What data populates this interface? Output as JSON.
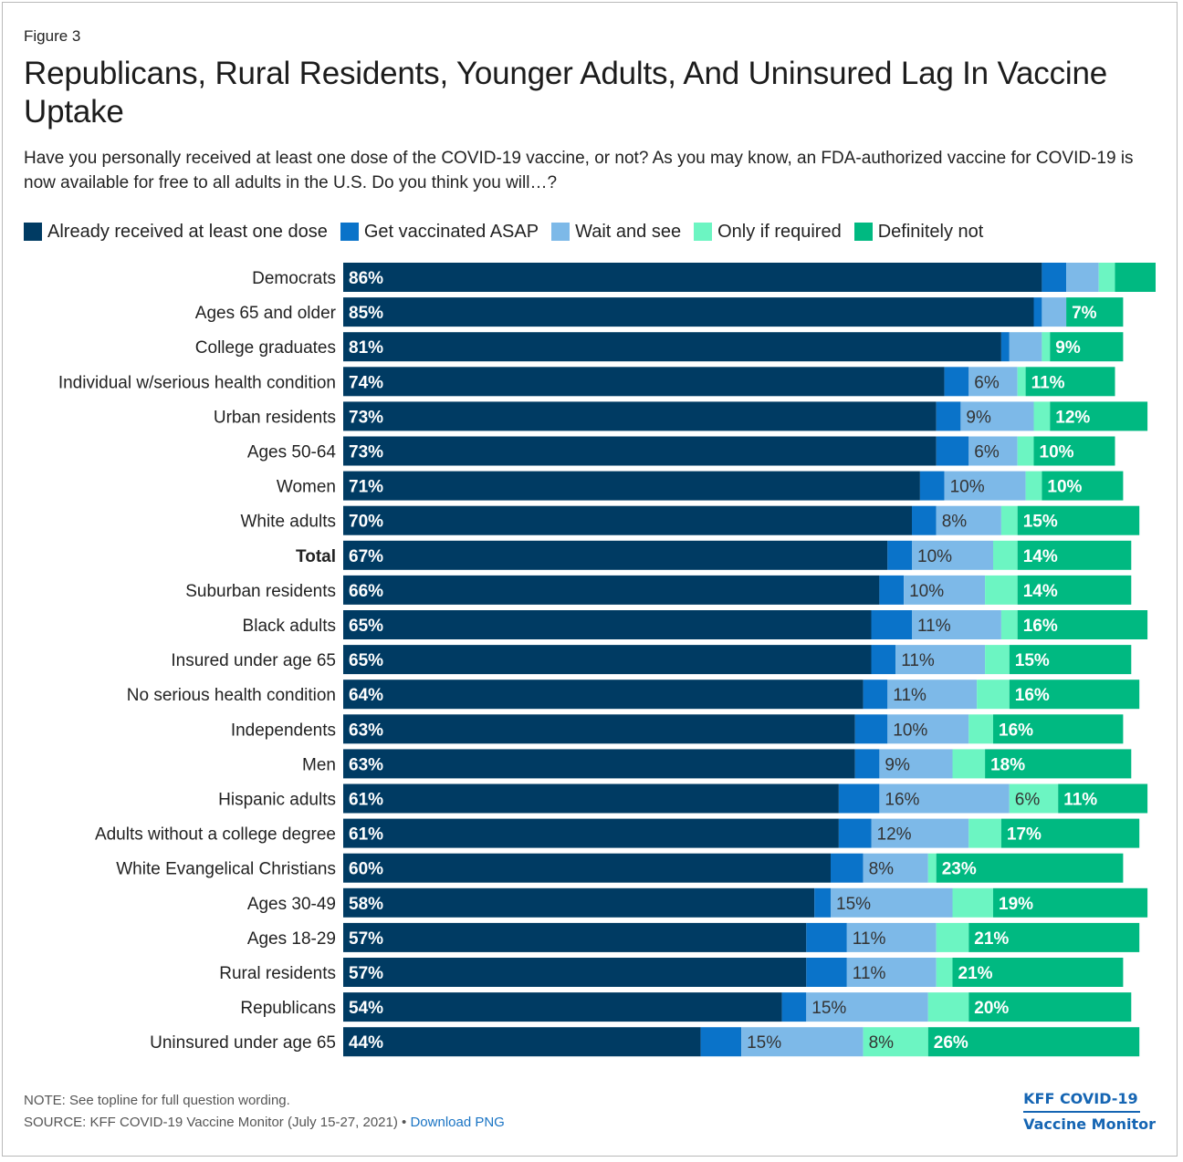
{
  "figure_label": "Figure 3",
  "title": "Republicans, Rural Residents, Younger Adults, And Uninsured Lag In Vaccine Uptake",
  "subtitle": "Have you personally received at least one dose of the COVID-19 vaccine, or not? As you may know, an FDA-authorized vaccine for COVID-19 is now available for free to all adults in the U.S. Do you think you will…?",
  "note": "NOTE: See topline for full question wording.",
  "source": "SOURCE: KFF COVID-19 Vaccine Monitor (July 15-27, 2021)",
  "source_separator": " • ",
  "download_link": "Download PNG",
  "brand": {
    "line1": "KFF COVID-19",
    "line2": "Vaccine Monitor"
  },
  "chart_data": {
    "type": "bar",
    "orientation": "horizontal",
    "stacked": true,
    "legend_position": "top",
    "grid": false,
    "xlim": [
      0,
      100
    ],
    "categories": [
      "Democrats",
      "Ages 65 and older",
      "College graduates",
      "Individual w/serious health condition",
      "Urban residents",
      "Ages 50-64",
      "Women",
      "White adults",
      "Total",
      "Suburban residents",
      "Black adults",
      "Insured under age 65",
      "No serious health condition",
      "Independents",
      "Men",
      "Hispanic adults",
      "Adults without a college degree",
      "White Evangelical Christians",
      "Ages 30-49",
      "Ages 18-29",
      "Rural residents",
      "Republicans",
      "Uninsured under age 65"
    ],
    "bold_categories": [
      "Total"
    ],
    "series": [
      {
        "name": "Already received at least one dose",
        "color": "#003b63",
        "values": [
          86,
          85,
          81,
          74,
          73,
          73,
          71,
          70,
          67,
          66,
          65,
          65,
          64,
          63,
          63,
          61,
          61,
          60,
          58,
          57,
          57,
          54,
          44
        ],
        "labels": [
          "86%",
          "85%",
          "81%",
          "74%",
          "73%",
          "73%",
          "71%",
          "70%",
          "67%",
          "66%",
          "65%",
          "65%",
          "64%",
          "63%",
          "63%",
          "61%",
          "61%",
          "60%",
          "58%",
          "57%",
          "57%",
          "54%",
          "44%"
        ],
        "label_color": "#ffffff"
      },
      {
        "name": "Get vaccinated ASAP",
        "color": "#0a73c9",
        "values": [
          3,
          1,
          1,
          3,
          3,
          4,
          3,
          3,
          3,
          3,
          5,
          3,
          3,
          4,
          3,
          5,
          4,
          4,
          2,
          5,
          5,
          3,
          5
        ],
        "labels": [
          "",
          "",
          "",
          "",
          "",
          "",
          "",
          "",
          "",
          "",
          "",
          "",
          "",
          "",
          "",
          "",
          "",
          "",
          "",
          "",
          "",
          "",
          ""
        ],
        "label_color": "#ffffff"
      },
      {
        "name": "Wait and see",
        "color": "#7db9e8",
        "values": [
          4,
          3,
          4,
          6,
          9,
          6,
          10,
          8,
          10,
          10,
          11,
          11,
          11,
          10,
          9,
          16,
          12,
          8,
          15,
          11,
          11,
          15,
          15
        ],
        "labels": [
          "",
          "",
          "",
          "6%",
          "9%",
          "6%",
          "10%",
          "8%",
          "10%",
          "10%",
          "11%",
          "11%",
          "11%",
          "10%",
          "9%",
          "16%",
          "12%",
          "8%",
          "15%",
          "11%",
          "11%",
          "15%",
          "15%"
        ],
        "label_color": "#333333"
      },
      {
        "name": "Only if required",
        "color": "#6cf5c2",
        "values": [
          2,
          0,
          1,
          1,
          2,
          2,
          2,
          2,
          3,
          4,
          2,
          3,
          4,
          3,
          4,
          6,
          4,
          1,
          5,
          4,
          2,
          5,
          8
        ],
        "labels": [
          "",
          "",
          "",
          "",
          "",
          "",
          "",
          "",
          "",
          "",
          "",
          "",
          "",
          "",
          "",
          "6%",
          "",
          "",
          "",
          "",
          "",
          "",
          "8%"
        ],
        "label_color": "#333333"
      },
      {
        "name": "Definitely not",
        "color": "#00b981",
        "values": [
          5,
          7,
          9,
          11,
          12,
          10,
          10,
          15,
          14,
          14,
          16,
          15,
          16,
          16,
          18,
          11,
          17,
          23,
          19,
          21,
          21,
          20,
          26
        ],
        "labels": [
          "",
          "7%",
          "9%",
          "11%",
          "12%",
          "10%",
          "10%",
          "15%",
          "14%",
          "14%",
          "16%",
          "15%",
          "16%",
          "16%",
          "18%",
          "11%",
          "17%",
          "23%",
          "19%",
          "21%",
          "21%",
          "20%",
          "26%"
        ],
        "label_color": "#ffffff"
      }
    ]
  }
}
